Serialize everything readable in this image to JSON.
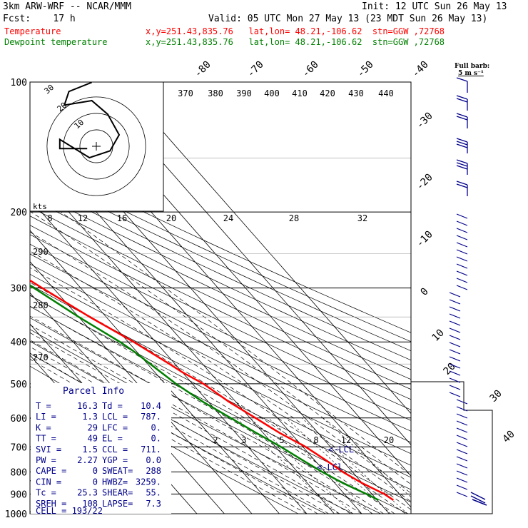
{
  "header": {
    "model": "3km ARW-WRF -- NCAR/MMM",
    "init": "Init: 12 UTC Sun 26 May 13",
    "fcst": "Fcst:    17 h",
    "valid": "Valid: 05 UTC Mon 27 May 13 (23 MDT Sun 26 May 13)",
    "temp_label": "Temperature",
    "temp_info": "x,y=251.43,835.76   lat,lon= 48.21,-106.62  stn=GGW ,72768",
    "dew_label": "Dewpoint temperature",
    "dew_info": "x,y=251.43,835.76   lat,lon= 48.21,-106.62  stn=GGW ,72768",
    "barb_label_1": "Full barb:",
    "barb_label_2": "5 m s⁻¹"
  },
  "colors": {
    "temperature": "#ff0000",
    "dewpoint": "#008000",
    "barbs": "#00008b",
    "info": "#00008b",
    "axes": "#000000"
  },
  "chart_data": {
    "type": "skew-T log-P sounding",
    "y_axis": {
      "label_values": [
        "100",
        "200",
        "300",
        "400",
        "500",
        "600",
        "700",
        "800",
        "900",
        "1000"
      ],
      "scale": "log",
      "unit": "hPa"
    },
    "isotherm_labels_top": [
      "-80",
      "-70",
      "-60",
      "-50",
      "-40"
    ],
    "isotherm_labels_right": [
      "-30",
      "-20",
      "-10",
      "0",
      "10",
      "20",
      "30",
      "40"
    ],
    "theta_labels": [
      "370",
      "380",
      "390",
      "400",
      "410",
      "420",
      "430",
      "440"
    ],
    "hodo_speed_labels": [
      "8",
      "12",
      "16",
      "20",
      "24",
      "28",
      "32"
    ],
    "hodo_ring_labels": [
      "30",
      "20",
      "10"
    ],
    "hodo_units": "kts",
    "dry_adiabat_labels": [
      "290",
      "280",
      "270"
    ],
    "mixing_ratio_labels": [
      "2",
      "3",
      "5",
      "8",
      "12",
      "20"
    ],
    "lcl_label": "LCL",
    "lfc_label": "LCl",
    "temperature": [
      [
        930,
        15.9
      ],
      [
        900,
        14.5
      ],
      [
        850,
        10
      ],
      [
        800,
        6.5
      ],
      [
        750,
        4
      ],
      [
        700,
        1
      ],
      [
        650,
        -4
      ],
      [
        600,
        -8
      ],
      [
        550,
        -12.5
      ],
      [
        500,
        -16
      ],
      [
        470,
        -20
      ],
      [
        450,
        -22
      ],
      [
        400,
        -28
      ],
      [
        350,
        -36
      ],
      [
        300,
        -44
      ],
      [
        250,
        -53
      ],
      [
        230,
        -56.5
      ],
      [
        210,
        -56
      ],
      [
        200,
        -54
      ],
      [
        180,
        -52
      ],
      [
        150,
        -49
      ],
      [
        130,
        -49
      ],
      [
        115,
        -47
      ],
      [
        100,
        -46
      ]
    ],
    "dewpoint": [
      [
        930,
        10.5
      ],
      [
        900,
        8
      ],
      [
        850,
        3
      ],
      [
        800,
        -1
      ],
      [
        750,
        -4.5
      ],
      [
        700,
        -8
      ],
      [
        650,
        -12.5
      ],
      [
        600,
        -17
      ],
      [
        550,
        -22
      ],
      [
        500,
        -26
      ],
      [
        450,
        -29
      ],
      [
        420,
        -31
      ],
      [
        400,
        -33
      ],
      [
        350,
        -40
      ],
      [
        300,
        -47
      ],
      [
        250,
        -56
      ],
      [
        220,
        -62
      ],
      [
        200,
        -66
      ],
      [
        170,
        -73
      ],
      [
        140,
        -78
      ],
      [
        120,
        -80
      ],
      [
        100,
        -81
      ]
    ],
    "hodograph": [
      [
        -2,
        28
      ],
      [
        -12,
        24
      ],
      [
        -14,
        18
      ],
      [
        -2,
        20
      ],
      [
        5,
        14
      ],
      [
        10,
        5
      ],
      [
        6,
        -2
      ],
      [
        -3,
        -5
      ],
      [
        -16,
        3
      ],
      [
        -16,
        -1
      ],
      [
        -4,
        -1
      ]
    ],
    "parcel_info": {
      "title": "Parcel Info",
      "rows": [
        [
          "T  =",
          "16.3",
          "Td =",
          "10.4"
        ],
        [
          "LI =",
          "1.3",
          "LCL =",
          "787."
        ],
        [
          "K  =",
          "29",
          "LFC =",
          "0."
        ],
        [
          "TT =",
          "49",
          "EL  =",
          "0."
        ],
        [
          "SVI =",
          "1.5",
          "CCL =",
          "711."
        ],
        [
          "PW =",
          "2.27",
          "YGP =",
          "0.0"
        ],
        [
          "CAPE =",
          "0",
          "SWEAT=",
          "288"
        ],
        [
          "CIN =",
          "0",
          "HWBZ=",
          "3259."
        ],
        [
          "Tc =",
          "25.3",
          "SHEAR=",
          "55."
        ],
        [
          "SREH =",
          "108",
          "LAPSE=",
          "7.3"
        ]
      ],
      "cell": "CELL = 193/22"
    }
  }
}
